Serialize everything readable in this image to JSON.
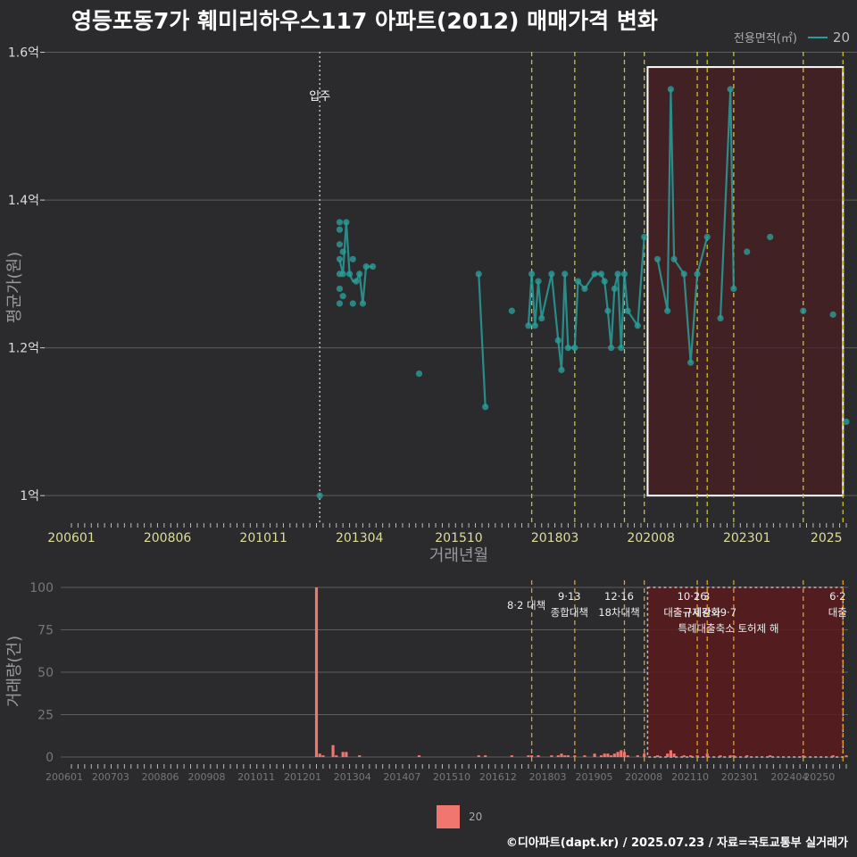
{
  "title": "영등포동7가 훼미리하우스117 아파트(2012) 매매가격 변화",
  "footer": "©디아파트(dapt.kr) / 2025.07.23 / 자료=국토교통부 실거래가",
  "colors": {
    "background": "#2b2b2d",
    "price_series": "#2a9d9a",
    "volume_bars": "#f0766f",
    "policy_line_upper": "#c9c22a",
    "policy_line_lower": "#e0a020",
    "highlight_fill": "#4a1f22",
    "highlight_border": "#ffffff"
  },
  "legend": {
    "title": "전용면적(㎡)",
    "series_name": "20"
  },
  "bottom_legend": {
    "label": "20"
  },
  "chart_data": [
    {
      "type": "line",
      "ylabel": "평균가(원)",
      "xlabel": "거래년월",
      "ylim": [
        0.97,
        1.62
      ],
      "yticks": [
        {
          "v": 1.0,
          "label": "1억"
        },
        {
          "v": 1.2,
          "label": "1.2억"
        },
        {
          "v": 1.4,
          "label": "1.4억"
        },
        {
          "v": 1.6,
          "label": "1.6억"
        }
      ],
      "xticks": [
        "200601",
        "200806",
        "201011",
        "201304",
        "201510",
        "201803",
        "202008",
        "202301",
        "2025"
      ],
      "xrange": [
        "2006-01",
        "2025-07"
      ],
      "grid": true,
      "annotation": {
        "date": "2012-04",
        "label": "입주"
      },
      "policy_lines": [
        "2017-08",
        "2018-09",
        "2019-12",
        "2020-06",
        "2021-10",
        "2022-01",
        "2022-09",
        "2024-06",
        "2025-06"
      ],
      "highlight": {
        "start": "2020-07",
        "end": "2025-06",
        "ymin": 1.0,
        "ymax": 1.58
      },
      "series": [
        {
          "name": "20",
          "points": [
            {
              "x": "2012-04",
              "y": 1.0
            },
            {
              "x": "2012-10",
              "y": 1.26
            },
            {
              "x": "2012-10",
              "y": 1.28
            },
            {
              "x": "2012-10",
              "y": 1.3
            },
            {
              "x": "2012-10",
              "y": 1.32
            },
            {
              "x": "2012-10",
              "y": 1.34
            },
            {
              "x": "2012-10",
              "y": 1.36
            },
            {
              "x": "2012-10",
              "y": 1.37
            },
            {
              "x": "2012-11",
              "y": 1.27
            },
            {
              "x": "2012-11",
              "y": 1.3
            },
            {
              "x": "2012-11",
              "y": 1.33
            },
            {
              "x": "2012-12",
              "y": 1.37
            },
            {
              "x": "2013-01",
              "y": 1.3
            },
            {
              "x": "2013-02",
              "y": 1.26
            },
            {
              "x": "2013-02",
              "y": 1.32
            },
            {
              "x": "2013-03",
              "y": 1.29
            },
            {
              "x": "2013-04",
              "y": 1.3
            },
            {
              "x": "2013-05",
              "y": 1.26
            },
            {
              "x": "2013-06",
              "y": 1.31
            },
            {
              "x": "2013-08",
              "y": 1.31
            },
            {
              "x": "2014-10",
              "y": 1.165
            },
            {
              "x": "2016-04",
              "y": 1.3
            },
            {
              "x": "2016-06",
              "y": 1.12
            },
            {
              "x": "2017-02",
              "y": 1.25
            },
            {
              "x": "2017-07",
              "y": 1.23
            },
            {
              "x": "2017-08",
              "y": 1.3
            },
            {
              "x": "2017-09",
              "y": 1.23
            },
            {
              "x": "2017-10",
              "y": 1.29
            },
            {
              "x": "2017-11",
              "y": 1.24
            },
            {
              "x": "2018-02",
              "y": 1.3
            },
            {
              "x": "2018-04",
              "y": 1.21
            },
            {
              "x": "2018-05",
              "y": 1.17
            },
            {
              "x": "2018-06",
              "y": 1.3
            },
            {
              "x": "2018-07",
              "y": 1.2
            },
            {
              "x": "2018-09",
              "y": 1.2
            },
            {
              "x": "2018-10",
              "y": 1.29
            },
            {
              "x": "2018-12",
              "y": 1.28
            },
            {
              "x": "2019-03",
              "y": 1.3
            },
            {
              "x": "2019-05",
              "y": 1.3
            },
            {
              "x": "2019-06",
              "y": 1.29
            },
            {
              "x": "2019-07",
              "y": 1.25
            },
            {
              "x": "2019-08",
              "y": 1.2
            },
            {
              "x": "2019-09",
              "y": 1.28
            },
            {
              "x": "2019-10",
              "y": 1.3
            },
            {
              "x": "2019-11",
              "y": 1.2
            },
            {
              "x": "2019-12",
              "y": 1.3
            },
            {
              "x": "2020-01",
              "y": 1.25
            },
            {
              "x": "2020-04",
              "y": 1.23
            },
            {
              "x": "2020-06",
              "y": 1.35
            },
            {
              "x": "2020-10",
              "y": 1.32
            },
            {
              "x": "2021-01",
              "y": 1.25
            },
            {
              "x": "2021-02",
              "y": 1.55
            },
            {
              "x": "2021-03",
              "y": 1.32
            },
            {
              "x": "2021-06",
              "y": 1.3
            },
            {
              "x": "2021-08",
              "y": 1.18
            },
            {
              "x": "2021-10",
              "y": 1.3
            },
            {
              "x": "2022-01",
              "y": 1.35
            },
            {
              "x": "2022-05",
              "y": 1.24
            },
            {
              "x": "2022-08",
              "y": 1.55
            },
            {
              "x": "2022-09",
              "y": 1.28
            },
            {
              "x": "2023-01",
              "y": 1.33
            },
            {
              "x": "2023-08",
              "y": 1.35
            },
            {
              "x": "2024-06",
              "y": 1.25
            },
            {
              "x": "2025-03",
              "y": 1.245
            },
            {
              "x": "2025-07",
              "y": 1.1
            }
          ]
        }
      ]
    },
    {
      "type": "bar",
      "ylabel": "거래량(건)",
      "ylim": [
        0,
        100
      ],
      "yticks": [
        0,
        25,
        50,
        75,
        100
      ],
      "xticks": [
        "200601",
        "200703",
        "200806",
        "200908",
        "201011",
        "201201",
        "201304",
        "201407",
        "201510",
        "201612",
        "201803",
        "201905",
        "202008",
        "202110",
        "202301",
        "202404",
        "20250"
      ],
      "policy_labels": [
        {
          "date": "2017-08",
          "top": "",
          "bottom": "8·2 대책"
        },
        {
          "date": "2018-09",
          "top": "9·13",
          "bottom": "종합대책"
        },
        {
          "date": "2019-12",
          "top": "12·16",
          "bottom": "18차대책"
        },
        {
          "date": "2021-10",
          "top": "10·26",
          "bottom": "대출규제강화"
        },
        {
          "date": "2022-01",
          "top": "1·3",
          "bottom": "규제완화"
        },
        {
          "date": "2022-09",
          "top": "9·7",
          "bottom": "특례대출축소 토허제 해"
        },
        {
          "date": "2025-06",
          "top": "6·2",
          "bottom": "대출"
        }
      ],
      "bars": [
        {
          "x": "2012-03",
          "v": 100
        },
        {
          "x": "2012-04",
          "v": 2
        },
        {
          "x": "2012-05",
          "v": 1
        },
        {
          "x": "2012-08",
          "v": 7
        },
        {
          "x": "2012-09",
          "v": 1
        },
        {
          "x": "2012-11",
          "v": 3
        },
        {
          "x": "2012-12",
          "v": 3
        },
        {
          "x": "2013-04",
          "v": 1
        },
        {
          "x": "2014-10",
          "v": 1
        },
        {
          "x": "2016-04",
          "v": 1
        },
        {
          "x": "2016-06",
          "v": 1
        },
        {
          "x": "2017-02",
          "v": 1
        },
        {
          "x": "2017-07",
          "v": 1
        },
        {
          "x": "2017-08",
          "v": 1
        },
        {
          "x": "2017-10",
          "v": 1
        },
        {
          "x": "2018-02",
          "v": 1
        },
        {
          "x": "2018-04",
          "v": 1
        },
        {
          "x": "2018-05",
          "v": 2
        },
        {
          "x": "2018-06",
          "v": 1
        },
        {
          "x": "2018-07",
          "v": 1
        },
        {
          "x": "2018-09",
          "v": 1
        },
        {
          "x": "2018-12",
          "v": 1
        },
        {
          "x": "2019-03",
          "v": 2
        },
        {
          "x": "2019-05",
          "v": 1
        },
        {
          "x": "2019-06",
          "v": 2
        },
        {
          "x": "2019-07",
          "v": 2
        },
        {
          "x": "2019-08",
          "v": 1
        },
        {
          "x": "2019-09",
          "v": 2
        },
        {
          "x": "2019-10",
          "v": 3
        },
        {
          "x": "2019-11",
          "v": 4
        },
        {
          "x": "2019-12",
          "v": 3
        },
        {
          "x": "2020-01",
          "v": 1
        },
        {
          "x": "2020-04",
          "v": 1
        },
        {
          "x": "2020-06",
          "v": 2
        },
        {
          "x": "2020-10",
          "v": 1
        },
        {
          "x": "2021-01",
          "v": 2
        },
        {
          "x": "2021-02",
          "v": 4
        },
        {
          "x": "2021-03",
          "v": 2
        },
        {
          "x": "2021-06",
          "v": 1
        },
        {
          "x": "2021-08",
          "v": 1
        },
        {
          "x": "2021-10",
          "v": 1
        },
        {
          "x": "2022-01",
          "v": 2
        },
        {
          "x": "2022-05",
          "v": 1
        },
        {
          "x": "2022-08",
          "v": 1
        },
        {
          "x": "2022-09",
          "v": 1
        },
        {
          "x": "2023-01",
          "v": 1
        },
        {
          "x": "2023-08",
          "v": 1
        },
        {
          "x": "2024-06",
          "v": 1
        },
        {
          "x": "2025-03",
          "v": 1
        },
        {
          "x": "2025-07",
          "v": 1
        }
      ]
    }
  ]
}
